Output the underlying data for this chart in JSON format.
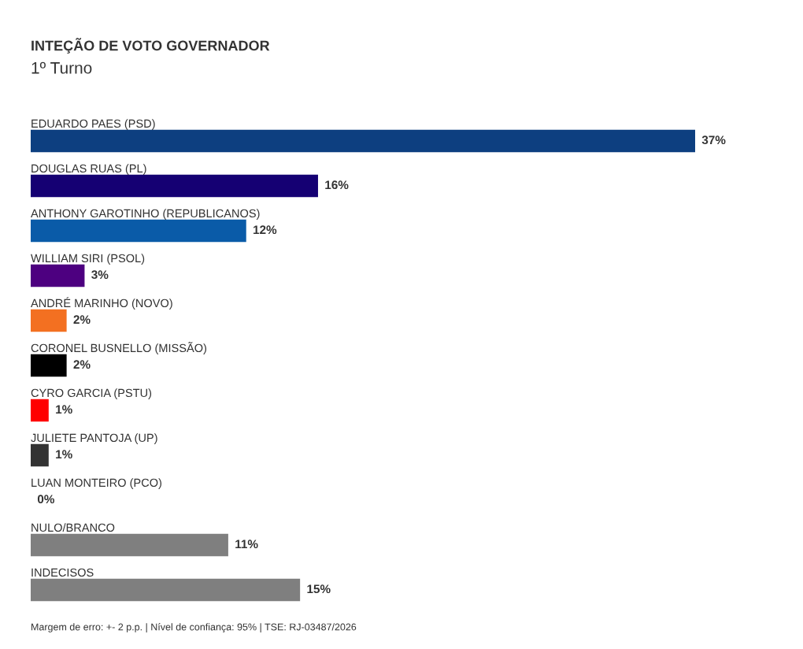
{
  "chart_data": {
    "type": "bar",
    "orientation": "horizontal",
    "title": "INTEÇÃO DE VOTO GOVERNADOR",
    "subtitle": "1º Turno",
    "categories": [
      "EDUARDO PAES (PSD)",
      "DOUGLAS RUAS (PL)",
      "ANTHONY GAROTINHO (REPUBLICANOS)",
      "WILLIAM SIRI (PSOL)",
      "ANDRÉ MARINHO (NOVO)",
      "CORONEL BUSNELLO (MISSÃO)",
      "CYRO GARCIA (PSTU)",
      "JULIETE PANTOJA (UP)",
      "LUAN MONTEIRO (PCO)",
      "NULO/BRANCO",
      "INDECISOS"
    ],
    "values": [
      37,
      16,
      12,
      3,
      2,
      2,
      1,
      1,
      0,
      11,
      15
    ],
    "value_labels": [
      "37%",
      "16%",
      "12%",
      "3%",
      "2%",
      "2%",
      "1%",
      "1%",
      "0%",
      "11%",
      "15%"
    ],
    "colors": [
      "#0d3f80",
      "#150073",
      "#0a5ba8",
      "#4d0080",
      "#f37021",
      "#000000",
      "#ff0000",
      "#333333",
      "#333333",
      "#7f7f7f",
      "#7f7f7f"
    ],
    "tick_labels": "y",
    "annotations": [
      "Margem de erro: +- 2 p.p. | Nível de confiança: 95% | TSE: RJ-03487/2026"
    ]
  }
}
